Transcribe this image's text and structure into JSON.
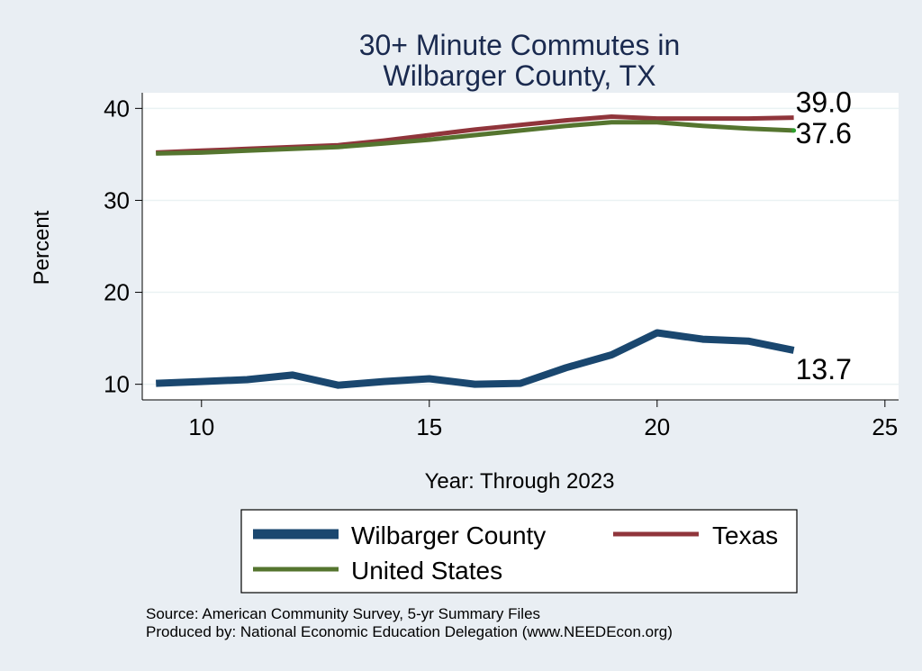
{
  "chart_data": {
    "type": "line",
    "title": [
      "30+ Minute Commutes in",
      "Wilbarger County, TX"
    ],
    "xlabel": "Year: Through 2023",
    "ylabel": "Percent",
    "xlim": [
      8.7,
      25.3
    ],
    "ylim": [
      8.3,
      41.7
    ],
    "xticks": [
      10,
      15,
      20,
      25
    ],
    "yticks": [
      10,
      20,
      30,
      40
    ],
    "grid": true,
    "legend_position": "bottom",
    "x": [
      9,
      10,
      11,
      12,
      13,
      14,
      15,
      16,
      17,
      18,
      19,
      20,
      21,
      22,
      23
    ],
    "series": [
      {
        "name": "Wilbarger County",
        "color": "#1a476f",
        "values": [
          10.1,
          10.3,
          10.5,
          11.0,
          9.9,
          10.3,
          10.6,
          10.0,
          10.1,
          11.8,
          13.2,
          15.6,
          14.9,
          14.7,
          13.7
        ],
        "end_label": "13.7"
      },
      {
        "name": "Texas",
        "color": "#90353b",
        "values": [
          35.2,
          35.4,
          35.6,
          35.8,
          36.0,
          36.5,
          37.1,
          37.7,
          38.2,
          38.7,
          39.1,
          38.9,
          38.9,
          38.9,
          39.0
        ],
        "end_label": "39.0"
      },
      {
        "name": "United States",
        "color": "#55752f",
        "values": [
          35.1,
          35.2,
          35.4,
          35.6,
          35.8,
          36.2,
          36.6,
          37.1,
          37.6,
          38.1,
          38.5,
          38.5,
          38.1,
          37.8,
          37.6
        ],
        "end_label": "37.6"
      }
    ]
  },
  "footer": {
    "source": "Source: American Community Survey, 5-yr Summary Files",
    "produced_by": "Produced by: National Economic Education Delegation (www.NEEDEcon.org)"
  }
}
